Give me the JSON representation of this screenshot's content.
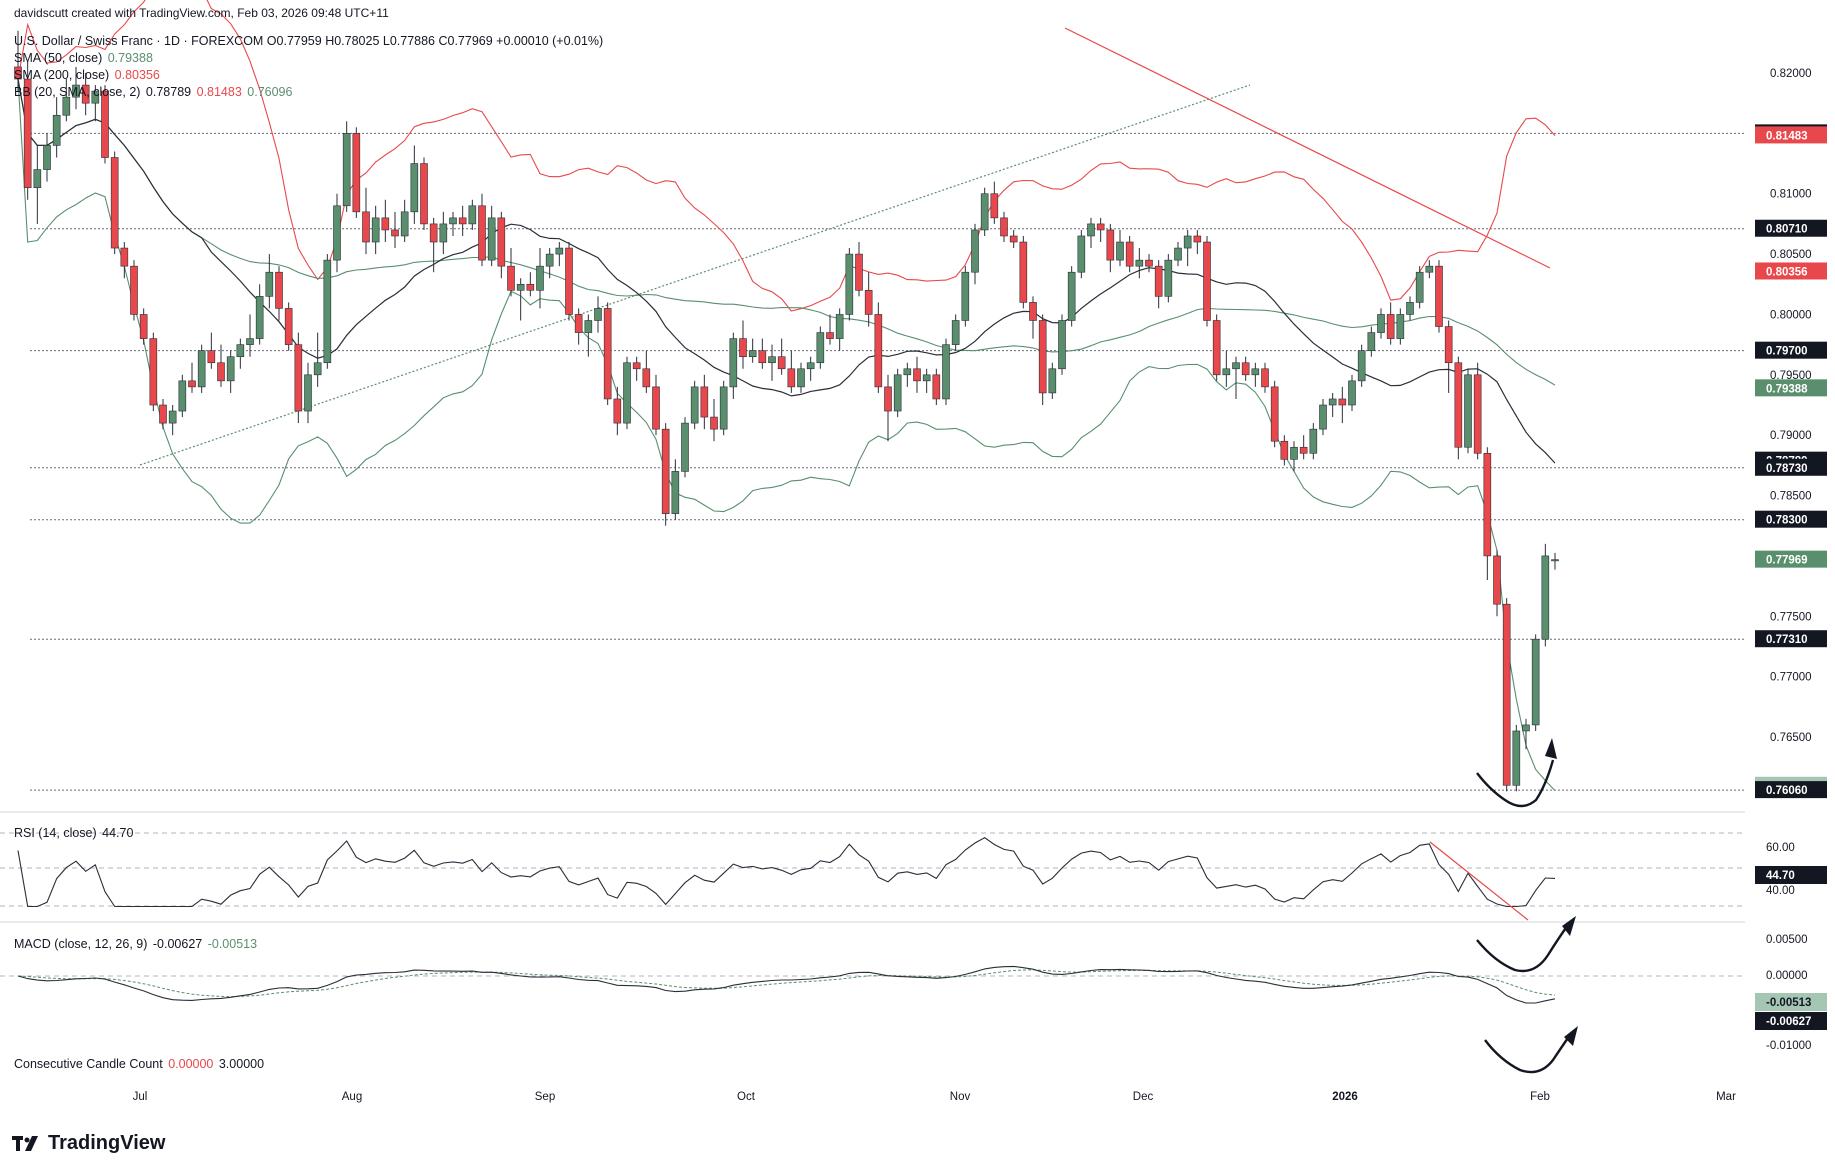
{
  "header": {
    "credit": "davidscutt created with TradingView.com, Feb 03, 2026 09:48 UTC+11",
    "symbol_line": "U.S. Dollar / Swiss Franc · 1D · FOREXCOM  O0.77959 H0.78025 L0.77886 C0.77969 +0.00010 (+0.01%)",
    "sma50_label": "SMA (50, close)",
    "sma50_value": "0.79388",
    "sma200_label": "SMA (200, close)",
    "sma200_value": "0.80356",
    "bb_label": "BB (20, SMA, close, 2)",
    "bb_values": [
      "0.78789",
      "0.81483",
      "0.76096"
    ]
  },
  "indicators": {
    "rsi_label": "RSI (14, close)",
    "rsi_value": "44.70",
    "macd_label": "MACD (close, 12, 26, 9)",
    "macd_value": "-0.00627",
    "macd_signal": "-0.00513",
    "ccc_label": "Consecutive Candle Count",
    "ccc_values": [
      "0.00000",
      "3.00000"
    ]
  },
  "brand": "TradingView",
  "colors": {
    "up": "#5a8f6e",
    "down": "#e8484b",
    "bb_mid": "#2a2e39",
    "bb_band": "#5a8f6e",
    "sma200": "#e8484b"
  },
  "chart_data": {
    "type": "candlestick",
    "title": "U.S. Dollar / Swiss Franc · 1D · FOREXCOM",
    "x_labels": [
      "Jul",
      "Aug",
      "Sep",
      "Oct",
      "Nov",
      "Dec",
      "2026",
      "Feb",
      "Mar"
    ],
    "y_ticks": [
      "0.82000",
      "0.81000",
      "0.80500",
      "0.80000",
      "0.79500",
      "0.79000",
      "0.78500",
      "0.77500",
      "0.77000",
      "0.76500"
    ],
    "ylim": [
      0.7595,
      0.8245
    ],
    "price_levels": [
      0.815,
      0.8071,
      0.797,
      0.7873,
      0.783,
      0.7731,
      0.7606
    ],
    "price_labels": [
      {
        "text": "0.81500",
        "value": 0.815,
        "kind": "level"
      },
      {
        "text": "0.81483",
        "value": 0.81483,
        "kind": "bb_upper"
      },
      {
        "text": "0.80710",
        "value": 0.8071,
        "kind": "level"
      },
      {
        "text": "0.80356",
        "value": 0.80356,
        "kind": "sma200"
      },
      {
        "text": "0.79700",
        "value": 0.797,
        "kind": "level"
      },
      {
        "text": "0.79388",
        "value": 0.79388,
        "kind": "sma50"
      },
      {
        "text": "0.78789",
        "value": 0.78789,
        "kind": "level"
      },
      {
        "text": "0.78730",
        "value": 0.7873,
        "kind": "level"
      },
      {
        "text": "0.78300",
        "value": 0.783,
        "kind": "level"
      },
      {
        "text": "0.77969",
        "value": 0.77969,
        "kind": "last"
      },
      {
        "text": "0.77310",
        "value": 0.7731,
        "kind": "level"
      },
      {
        "text": "0.76096",
        "value": 0.76096,
        "kind": "bb_lower"
      },
      {
        "text": "0.76060",
        "value": 0.7606,
        "kind": "level"
      }
    ],
    "last_close": 0.77969,
    "rsi_ticks": [
      "60.00",
      "40.00"
    ],
    "rsi_value": 44.7,
    "macd_ticks": [
      "0.00500",
      "0.00000",
      "-0.01000"
    ],
    "macd": {
      "macd": -0.00627,
      "signal": -0.00513
    },
    "candles_ohlc": [
      [
        0.8205,
        0.8235,
        0.8185,
        0.8195
      ],
      [
        0.8195,
        0.821,
        0.8095,
        0.8105
      ],
      [
        0.8105,
        0.814,
        0.8075,
        0.812
      ],
      [
        0.812,
        0.815,
        0.811,
        0.814
      ],
      [
        0.814,
        0.818,
        0.813,
        0.8165
      ],
      [
        0.8165,
        0.8195,
        0.816,
        0.818
      ],
      [
        0.818,
        0.8205,
        0.817,
        0.819
      ],
      [
        0.819,
        0.82,
        0.8165,
        0.8175
      ],
      [
        0.8175,
        0.819,
        0.816,
        0.8185
      ],
      [
        0.8185,
        0.819,
        0.8125,
        0.813
      ],
      [
        0.813,
        0.8135,
        0.805,
        0.8055
      ],
      [
        0.8055,
        0.806,
        0.803,
        0.804
      ],
      [
        0.804,
        0.8045,
        0.7995,
        0.8
      ],
      [
        0.8,
        0.8005,
        0.7975,
        0.798
      ],
      [
        0.798,
        0.7985,
        0.792,
        0.7925
      ],
      [
        0.7925,
        0.793,
        0.7905,
        0.791
      ],
      [
        0.791,
        0.7925,
        0.79,
        0.792
      ],
      [
        0.792,
        0.795,
        0.7915,
        0.7945
      ],
      [
        0.7945,
        0.796,
        0.7935,
        0.794
      ],
      [
        0.794,
        0.7975,
        0.7935,
        0.797
      ],
      [
        0.797,
        0.7985,
        0.7955,
        0.796
      ],
      [
        0.796,
        0.7975,
        0.794,
        0.7945
      ],
      [
        0.7945,
        0.797,
        0.7935,
        0.7965
      ],
      [
        0.7965,
        0.798,
        0.7955,
        0.7975
      ],
      [
        0.7975,
        0.8,
        0.7965,
        0.798
      ],
      [
        0.798,
        0.8025,
        0.7975,
        0.8015
      ],
      [
        0.8015,
        0.805,
        0.8005,
        0.8035
      ],
      [
        0.8035,
        0.804,
        0.7995,
        0.8005
      ],
      [
        0.8005,
        0.801,
        0.797,
        0.7975
      ],
      [
        0.7975,
        0.7985,
        0.791,
        0.792
      ],
      [
        0.792,
        0.796,
        0.791,
        0.795
      ],
      [
        0.795,
        0.7985,
        0.794,
        0.796
      ],
      [
        0.796,
        0.805,
        0.7955,
        0.8045
      ],
      [
        0.8045,
        0.81,
        0.8035,
        0.809
      ],
      [
        0.809,
        0.816,
        0.8085,
        0.815
      ],
      [
        0.815,
        0.8155,
        0.808,
        0.8085
      ],
      [
        0.8085,
        0.8105,
        0.805,
        0.806
      ],
      [
        0.806,
        0.809,
        0.805,
        0.808
      ],
      [
        0.808,
        0.8095,
        0.806,
        0.807
      ],
      [
        0.807,
        0.8085,
        0.8055,
        0.8065
      ],
      [
        0.8065,
        0.8095,
        0.806,
        0.8085
      ],
      [
        0.8085,
        0.814,
        0.8075,
        0.8125
      ],
      [
        0.8125,
        0.813,
        0.807,
        0.8075
      ],
      [
        0.8075,
        0.808,
        0.8035,
        0.806
      ],
      [
        0.806,
        0.8085,
        0.805,
        0.8075
      ],
      [
        0.8075,
        0.8085,
        0.8065,
        0.808
      ],
      [
        0.808,
        0.809,
        0.8065,
        0.8075
      ],
      [
        0.8075,
        0.8095,
        0.807,
        0.809
      ],
      [
        0.809,
        0.81,
        0.804,
        0.8045
      ],
      [
        0.8045,
        0.809,
        0.804,
        0.808
      ],
      [
        0.808,
        0.8085,
        0.803,
        0.804
      ],
      [
        0.804,
        0.8055,
        0.8015,
        0.802
      ],
      [
        0.802,
        0.803,
        0.7995,
        0.8025
      ],
      [
        0.8025,
        0.8035,
        0.8015,
        0.802
      ],
      [
        0.802,
        0.8055,
        0.8005,
        0.804
      ],
      [
        0.804,
        0.8055,
        0.803,
        0.805
      ],
      [
        0.805,
        0.806,
        0.804,
        0.8055
      ],
      [
        0.8055,
        0.806,
        0.7995,
        0.8
      ],
      [
        0.8,
        0.8005,
        0.7975,
        0.7985
      ],
      [
        0.7985,
        0.8,
        0.7965,
        0.7995
      ],
      [
        0.7995,
        0.8015,
        0.7985,
        0.8005
      ],
      [
        0.8005,
        0.801,
        0.7925,
        0.793
      ],
      [
        0.793,
        0.794,
        0.79,
        0.791
      ],
      [
        0.791,
        0.7965,
        0.7905,
        0.796
      ],
      [
        0.796,
        0.7965,
        0.7945,
        0.7955
      ],
      [
        0.7955,
        0.797,
        0.7935,
        0.794
      ],
      [
        0.794,
        0.795,
        0.79,
        0.7905
      ],
      [
        0.7905,
        0.791,
        0.7825,
        0.7835
      ],
      [
        0.7835,
        0.788,
        0.783,
        0.787
      ],
      [
        0.787,
        0.7915,
        0.7865,
        0.791
      ],
      [
        0.791,
        0.7945,
        0.7905,
        0.794
      ],
      [
        0.794,
        0.795,
        0.7905,
        0.7915
      ],
      [
        0.7915,
        0.793,
        0.7895,
        0.7905
      ],
      [
        0.7905,
        0.7945,
        0.79,
        0.794
      ],
      [
        0.794,
        0.7985,
        0.793,
        0.798
      ],
      [
        0.798,
        0.7995,
        0.7955,
        0.7965
      ],
      [
        0.7965,
        0.798,
        0.796,
        0.797
      ],
      [
        0.797,
        0.798,
        0.7955,
        0.796
      ],
      [
        0.796,
        0.7975,
        0.7945,
        0.7965
      ],
      [
        0.7965,
        0.798,
        0.795,
        0.7955
      ],
      [
        0.7955,
        0.797,
        0.7935,
        0.794
      ],
      [
        0.794,
        0.796,
        0.7935,
        0.7955
      ],
      [
        0.7955,
        0.7965,
        0.7945,
        0.796
      ],
      [
        0.796,
        0.799,
        0.7955,
        0.7985
      ],
      [
        0.7985,
        0.8,
        0.7975,
        0.798
      ],
      [
        0.798,
        0.8005,
        0.797,
        0.8
      ],
      [
        0.8,
        0.8055,
        0.7995,
        0.805
      ],
      [
        0.805,
        0.806,
        0.8015,
        0.802
      ],
      [
        0.802,
        0.8035,
        0.799,
        0.8
      ],
      [
        0.8,
        0.801,
        0.7935,
        0.794
      ],
      [
        0.794,
        0.795,
        0.7895,
        0.792
      ],
      [
        0.792,
        0.7955,
        0.7915,
        0.795
      ],
      [
        0.795,
        0.796,
        0.794,
        0.7955
      ],
      [
        0.7955,
        0.7965,
        0.7935,
        0.7945
      ],
      [
        0.7945,
        0.7955,
        0.7935,
        0.795
      ],
      [
        0.795,
        0.7955,
        0.7925,
        0.793
      ],
      [
        0.793,
        0.798,
        0.7925,
        0.7975
      ],
      [
        0.7975,
        0.8,
        0.797,
        0.7995
      ],
      [
        0.7995,
        0.804,
        0.799,
        0.8035
      ],
      [
        0.8035,
        0.8075,
        0.8025,
        0.807
      ],
      [
        0.807,
        0.8105,
        0.8065,
        0.81
      ],
      [
        0.81,
        0.811,
        0.8075,
        0.808
      ],
      [
        0.808,
        0.8085,
        0.806,
        0.8065
      ],
      [
        0.8065,
        0.807,
        0.8055,
        0.806
      ],
      [
        0.806,
        0.8065,
        0.8005,
        0.801
      ],
      [
        0.801,
        0.8015,
        0.798,
        0.7995
      ],
      [
        0.7995,
        0.8,
        0.7925,
        0.7935
      ],
      [
        0.7935,
        0.796,
        0.793,
        0.7955
      ],
      [
        0.7955,
        0.8,
        0.795,
        0.7995
      ],
      [
        0.7995,
        0.804,
        0.799,
        0.8035
      ],
      [
        0.8035,
        0.807,
        0.803,
        0.8065
      ],
      [
        0.8065,
        0.808,
        0.8055,
        0.8075
      ],
      [
        0.8075,
        0.808,
        0.806,
        0.807
      ],
      [
        0.807,
        0.8075,
        0.8035,
        0.8045
      ],
      [
        0.8045,
        0.807,
        0.804,
        0.806
      ],
      [
        0.806,
        0.8065,
        0.8035,
        0.804
      ],
      [
        0.804,
        0.8055,
        0.803,
        0.8045
      ],
      [
        0.8045,
        0.805,
        0.8035,
        0.804
      ],
      [
        0.804,
        0.8045,
        0.8005,
        0.8015
      ],
      [
        0.8015,
        0.805,
        0.801,
        0.8045
      ],
      [
        0.8045,
        0.806,
        0.804,
        0.8055
      ],
      [
        0.8055,
        0.807,
        0.804,
        0.8065
      ],
      [
        0.8065,
        0.807,
        0.805,
        0.806
      ],
      [
        0.806,
        0.8065,
        0.799,
        0.7995
      ],
      [
        0.7995,
        0.8,
        0.7945,
        0.795
      ],
      [
        0.795,
        0.797,
        0.794,
        0.7955
      ],
      [
        0.7955,
        0.7965,
        0.793,
        0.796
      ],
      [
        0.796,
        0.7965,
        0.7945,
        0.795
      ],
      [
        0.795,
        0.796,
        0.794,
        0.7955
      ],
      [
        0.7955,
        0.796,
        0.7935,
        0.794
      ],
      [
        0.794,
        0.7945,
        0.789,
        0.7895
      ],
      [
        0.7895,
        0.79,
        0.7875,
        0.788
      ],
      [
        0.788,
        0.7895,
        0.787,
        0.789
      ],
      [
        0.789,
        0.79,
        0.788,
        0.7885
      ],
      [
        0.7885,
        0.791,
        0.788,
        0.7905
      ],
      [
        0.7905,
        0.793,
        0.79,
        0.7925
      ],
      [
        0.7925,
        0.7935,
        0.7915,
        0.793
      ],
      [
        0.793,
        0.794,
        0.791,
        0.7925
      ],
      [
        0.7925,
        0.795,
        0.792,
        0.7945
      ],
      [
        0.7945,
        0.7975,
        0.794,
        0.797
      ],
      [
        0.797,
        0.799,
        0.7965,
        0.7985
      ],
      [
        0.7985,
        0.8005,
        0.798,
        0.8
      ],
      [
        0.8,
        0.801,
        0.7975,
        0.798
      ],
      [
        0.798,
        0.8005,
        0.7975,
        0.8
      ],
      [
        0.8,
        0.8015,
        0.7995,
        0.801
      ],
      [
        0.801,
        0.804,
        0.8005,
        0.8035
      ],
      [
        0.8035,
        0.8045,
        0.803,
        0.804
      ],
      [
        0.804,
        0.8045,
        0.7985,
        0.799
      ],
      [
        0.799,
        0.7995,
        0.7935,
        0.796
      ],
      [
        0.796,
        0.7965,
        0.788,
        0.789
      ],
      [
        0.789,
        0.7955,
        0.7885,
        0.795
      ],
      [
        0.795,
        0.796,
        0.788,
        0.7885
      ],
      [
        0.7885,
        0.789,
        0.778,
        0.78
      ],
      [
        0.78,
        0.7805,
        0.775,
        0.776
      ],
      [
        0.776,
        0.7765,
        0.7605,
        0.761
      ],
      [
        0.761,
        0.766,
        0.7605,
        0.7655
      ],
      [
        0.7655,
        0.7665,
        0.764,
        0.766
      ],
      [
        0.766,
        0.7735,
        0.7655,
        0.7731
      ],
      [
        0.7731,
        0.781,
        0.7725,
        0.78
      ],
      [
        0.77959,
        0.78025,
        0.77886,
        0.77969
      ]
    ]
  }
}
